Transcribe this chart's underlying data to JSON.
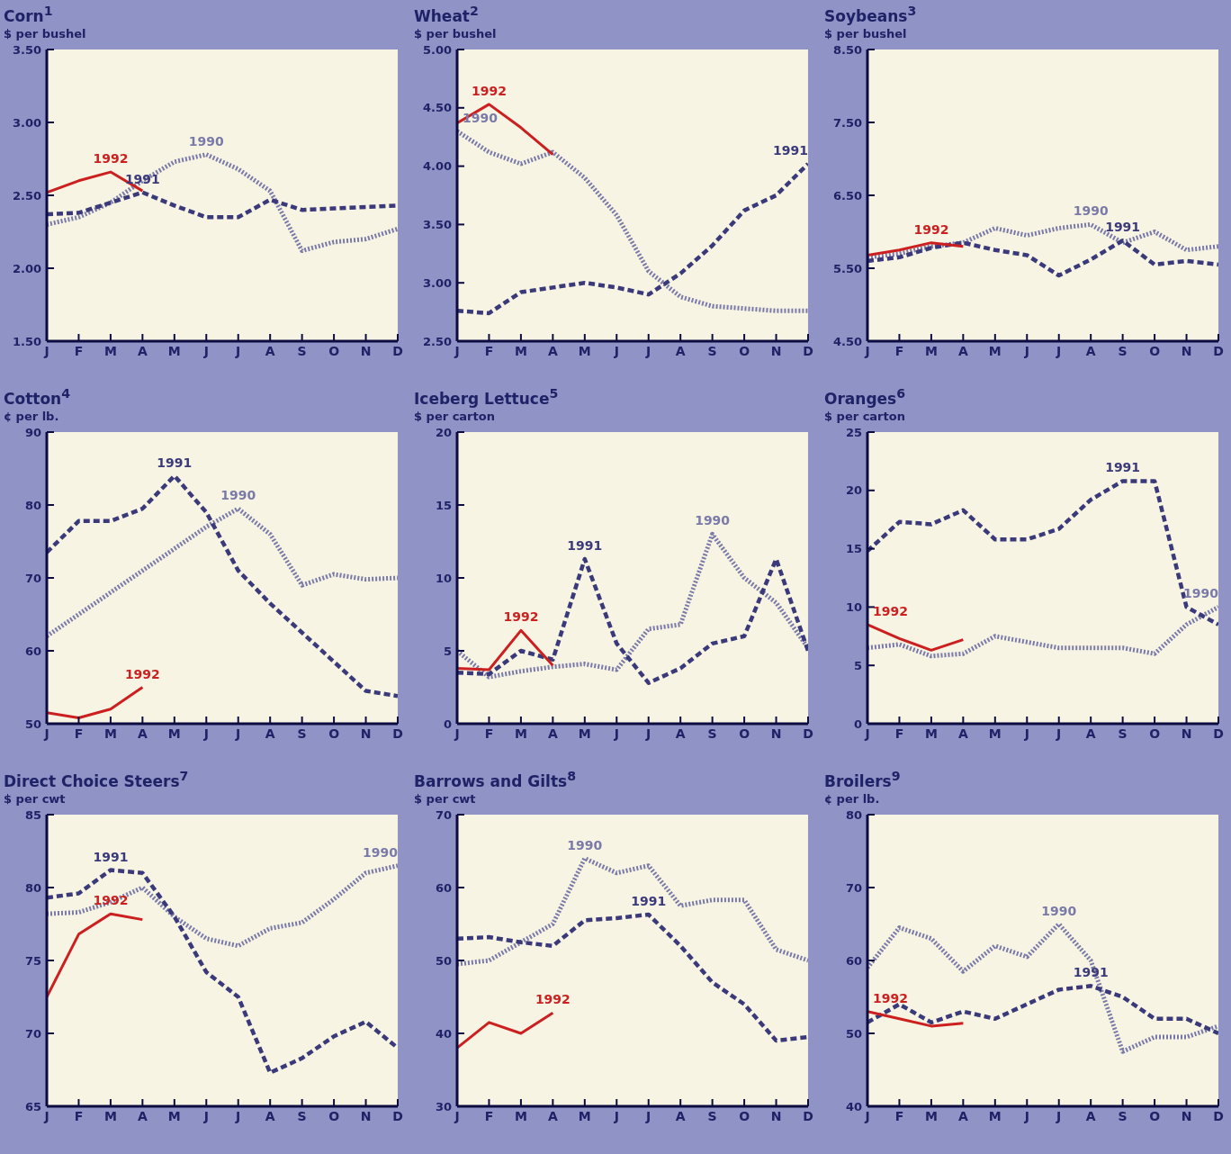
{
  "chart_data": [
    {
      "type": "line",
      "title": "Corn$^{1}$",
      "ylabel": "$ per bushel",
      "categories": [
        "J",
        "F",
        "M",
        "A",
        "M",
        "J",
        "J",
        "A",
        "S",
        "O",
        "N",
        "D"
      ],
      "ylim": [
        1.5,
        3.5
      ],
      "yticks": [
        {
          "value": 1.5,
          "label": "1.50"
        },
        {
          "value": 2,
          "label": "2.00"
        },
        {
          "value": 2.5,
          "label": "2.50"
        },
        {
          "value": 3,
          "label": "3.00"
        },
        {
          "value": 3.5,
          "label": "3.50"
        }
      ],
      "series": [
        {
          "name": "1990",
          "color": "#7a7aa8",
          "line_style": "dotted",
          "values": [
            2.3,
            2.35,
            2.45,
            2.6,
            2.73,
            2.78,
            2.68,
            2.53,
            2.12,
            2.18,
            2.2,
            2.27
          ]
        },
        {
          "name": "1991",
          "color": "#3a3a7a",
          "line_style": "dashed",
          "values": [
            2.37,
            2.38,
            2.45,
            2.52,
            2.43,
            2.35,
            2.35,
            2.47,
            2.4,
            2.41,
            2.42,
            2.43
          ]
        },
        {
          "name": "1992",
          "color": "#cc2020",
          "line_style": "solid",
          "values": [
            2.52,
            2.6,
            2.66,
            2.53,
            null,
            null,
            null,
            null,
            null,
            null,
            null,
            null
          ]
        }
      ]
    },
    {
      "type": "line",
      "title": "Wheat$^{2}$",
      "ylabel": "$ per bushel",
      "categories": [
        "J",
        "F",
        "M",
        "A",
        "M",
        "J",
        "J",
        "A",
        "S",
        "O",
        "N",
        "D"
      ],
      "ylim": [
        2.5,
        5
      ],
      "yticks": [
        {
          "value": 2.5,
          "label": "2.50"
        },
        {
          "value": 3,
          "label": "3.00"
        },
        {
          "value": 3.5,
          "label": "3.50"
        },
        {
          "value": 4,
          "label": "4.00"
        },
        {
          "value": 4.5,
          "label": "4.50"
        },
        {
          "value": 5,
          "label": "5.00"
        }
      ],
      "series": [
        {
          "name": "1990",
          "color": "#7a7aa8",
          "line_style": "dotted",
          "values": [
            4.3,
            4.12,
            4.02,
            4.12,
            3.9,
            3.58,
            3.1,
            2.88,
            2.8,
            2.78,
            2.76,
            2.76
          ]
        },
        {
          "name": "1991",
          "color": "#3a3a7a",
          "line_style": "dashed",
          "values": [
            2.76,
            2.74,
            2.92,
            2.96,
            3.0,
            2.96,
            2.9,
            3.08,
            3.32,
            3.62,
            3.75,
            4.02
          ]
        },
        {
          "name": "1992",
          "color": "#cc2020",
          "line_style": "solid",
          "values": [
            4.37,
            4.53,
            4.33,
            4.1,
            null,
            null,
            null,
            null,
            null,
            null,
            null,
            null
          ]
        }
      ]
    },
    {
      "type": "line",
      "title": "Soybeans$^{3}$",
      "ylabel": "$ per bushel",
      "categories": [
        "J",
        "F",
        "M",
        "A",
        "M",
        "J",
        "J",
        "A",
        "S",
        "O",
        "N",
        "D"
      ],
      "ylim": [
        4.5,
        8.5
      ],
      "yticks": [
        {
          "value": 4.5,
          "label": "4.50"
        },
        {
          "value": 5.5,
          "label": "5.50"
        },
        {
          "value": 6.5,
          "label": "6.50"
        },
        {
          "value": 7.5,
          "label": "7.50"
        },
        {
          "value": 8.5,
          "label": "8.50"
        }
      ],
      "series": [
        {
          "name": "1990",
          "color": "#7a7aa8",
          "line_style": "dotted",
          "values": [
            5.65,
            5.7,
            5.8,
            5.85,
            6.05,
            5.95,
            6.05,
            6.1,
            5.85,
            6.0,
            5.75,
            5.8
          ]
        },
        {
          "name": "1991",
          "color": "#3a3a7a",
          "line_style": "dashed",
          "values": [
            5.6,
            5.65,
            5.78,
            5.85,
            5.75,
            5.68,
            5.4,
            5.62,
            5.88,
            5.55,
            5.6,
            5.55
          ]
        },
        {
          "name": "1992",
          "color": "#cc2020",
          "line_style": "solid",
          "values": [
            5.68,
            5.75,
            5.85,
            5.8,
            null,
            null,
            null,
            null,
            null,
            null,
            null,
            null
          ]
        }
      ]
    },
    {
      "type": "line",
      "title": "Cotton$^{4}$",
      "ylabel": "¢ per lb.",
      "categories": [
        "J",
        "F",
        "M",
        "A",
        "M",
        "J",
        "J",
        "A",
        "S",
        "O",
        "N",
        "D"
      ],
      "ylim": [
        50,
        90
      ],
      "yticks": [
        50,
        60,
        70,
        80,
        90
      ],
      "series": [
        {
          "name": "1990",
          "color": "#7a7aa8",
          "line_style": "dotted",
          "values": [
            62,
            65,
            68,
            71,
            74,
            77,
            79.5,
            76,
            69,
            70.5,
            69.8,
            70
          ]
        },
        {
          "name": "1991",
          "color": "#3a3a7a",
          "line_style": "dashed",
          "values": [
            73.5,
            77.8,
            77.8,
            79.5,
            84,
            79,
            71,
            66.5,
            62.5,
            58.5,
            54.5,
            53.8
          ]
        },
        {
          "name": "1992",
          "color": "#cc2020",
          "line_style": "solid",
          "values": [
            51.5,
            50.8,
            52,
            55,
            null,
            null,
            null,
            null,
            null,
            null,
            null,
            null
          ]
        }
      ]
    },
    {
      "type": "line",
      "title": "Iceberg Lettuce$^{5}$",
      "ylabel": "$ per carton",
      "categories": [
        "J",
        "F",
        "M",
        "A",
        "M",
        "J",
        "J",
        "A",
        "S",
        "O",
        "N",
        "D"
      ],
      "ylim": [
        0,
        20
      ],
      "yticks": [
        0,
        5,
        10,
        15,
        20
      ],
      "series": [
        {
          "name": "1990",
          "color": "#7a7aa8",
          "line_style": "dotted",
          "values": [
            5.0,
            3.2,
            3.6,
            3.9,
            4.1,
            3.7,
            6.5,
            6.8,
            13,
            10,
            8.3,
            5.2
          ]
        },
        {
          "name": "1991",
          "color": "#3a3a7a",
          "line_style": "dashed",
          "values": [
            3.5,
            3.4,
            5.0,
            4.4,
            11.3,
            5.5,
            2.8,
            3.8,
            5.5,
            6.0,
            11.3,
            5.0
          ]
        },
        {
          "name": "1992",
          "color": "#cc2020",
          "line_style": "solid",
          "values": [
            3.8,
            3.7,
            6.4,
            4.0,
            null,
            null,
            null,
            null,
            null,
            null,
            null,
            null
          ]
        }
      ]
    },
    {
      "type": "line",
      "title": "Oranges$^{6}$",
      "ylabel": "$ per carton",
      "categories": [
        "J",
        "F",
        "M",
        "A",
        "M",
        "J",
        "J",
        "A",
        "S",
        "O",
        "N",
        "D"
      ],
      "ylim": [
        0,
        25
      ],
      "yticks": [
        0,
        5,
        10,
        15,
        20,
        25
      ],
      "series": [
        {
          "name": "1990",
          "color": "#7a7aa8",
          "line_style": "dotted",
          "values": [
            6.5,
            6.8,
            5.8,
            6.0,
            7.5,
            7.0,
            6.5,
            6.5,
            6.5,
            6.0,
            8.5,
            10
          ]
        },
        {
          "name": "1991",
          "color": "#3a3a7a",
          "line_style": "dashed",
          "values": [
            14.8,
            17.3,
            17.1,
            18.3,
            15.8,
            15.8,
            16.7,
            19.2,
            20.8,
            20.8,
            10.0,
            8.5
          ]
        },
        {
          "name": "1992",
          "color": "#cc2020",
          "line_style": "solid",
          "values": [
            8.5,
            7.3,
            6.3,
            7.2,
            null,
            null,
            null,
            null,
            null,
            null,
            null,
            null
          ]
        }
      ]
    },
    {
      "type": "line",
      "title": "Direct Choice Steers$^{7}$",
      "ylabel": "$ per cwt",
      "categories": [
        "J",
        "F",
        "M",
        "A",
        "M",
        "J",
        "J",
        "A",
        "S",
        "O",
        "N",
        "D"
      ],
      "ylim": [
        65,
        85
      ],
      "yticks": [
        65,
        70,
        75,
        80,
        85
      ],
      "series": [
        {
          "name": "1990",
          "color": "#7a7aa8",
          "line_style": "dotted",
          "values": [
            78.2,
            78.3,
            79.0,
            80.0,
            78.0,
            76.5,
            76.0,
            77.2,
            77.6,
            79.2,
            81.0,
            81.5
          ]
        },
        {
          "name": "1991",
          "color": "#3a3a7a",
          "line_style": "dashed",
          "values": [
            79.3,
            79.6,
            81.2,
            81.0,
            78.0,
            74.2,
            72.5,
            67.3,
            68.3,
            69.8,
            70.8,
            69.0
          ]
        },
        {
          "name": "1992",
          "color": "#cc2020",
          "line_style": "solid",
          "values": [
            72.5,
            76.8,
            78.2,
            77.8,
            null,
            null,
            null,
            null,
            null,
            null,
            null,
            null
          ]
        }
      ]
    },
    {
      "type": "line",
      "title": "Barrows and Gilts$^{8}$",
      "ylabel": "$ per cwt",
      "categories": [
        "J",
        "F",
        "M",
        "A",
        "M",
        "J",
        "J",
        "A",
        "S",
        "O",
        "N",
        "D"
      ],
      "ylim": [
        30,
        70
      ],
      "yticks": [
        30,
        40,
        50,
        60,
        70
      ],
      "series": [
        {
          "name": "1990",
          "color": "#7a7aa8",
          "line_style": "dotted",
          "values": [
            49.5,
            50.0,
            52.5,
            55.0,
            64.0,
            62.0,
            63.0,
            57.5,
            58.3,
            58.3,
            51.5,
            50.0
          ]
        },
        {
          "name": "1991",
          "color": "#3a3a7a",
          "line_style": "dashed",
          "values": [
            53.0,
            53.2,
            52.5,
            52.0,
            55.5,
            55.8,
            56.3,
            52.0,
            47.0,
            44.0,
            39.0,
            39.5
          ]
        },
        {
          "name": "1992",
          "color": "#cc2020",
          "line_style": "solid",
          "values": [
            38.0,
            41.5,
            40.0,
            42.8,
            null,
            null,
            null,
            null,
            null,
            null,
            null,
            null
          ]
        }
      ]
    },
    {
      "type": "line",
      "title": "Broilers$^{9}$",
      "ylabel": "¢ per lb.",
      "categories": [
        "J",
        "F",
        "M",
        "A",
        "M",
        "J",
        "J",
        "A",
        "S",
        "O",
        "N",
        "D"
      ],
      "ylim": [
        40,
        80
      ],
      "yticks": [
        40,
        50,
        60,
        70,
        80
      ],
      "series": [
        {
          "name": "1990",
          "color": "#7a7aa8",
          "line_style": "dotted",
          "values": [
            59,
            64.5,
            63,
            58.5,
            62,
            60.5,
            65,
            60,
            47.5,
            49.5,
            49.5,
            51
          ]
        },
        {
          "name": "1991",
          "color": "#3a3a7a",
          "line_style": "dashed",
          "values": [
            51.5,
            54,
            51.5,
            53,
            52,
            54,
            56,
            56.5,
            55,
            52,
            52,
            50
          ]
        },
        {
          "name": "1992",
          "color": "#cc2020",
          "line_style": "solid",
          "values": [
            53,
            52,
            51,
            51.4,
            null,
            null,
            null,
            null,
            null,
            null,
            null,
            null
          ]
        }
      ]
    }
  ]
}
